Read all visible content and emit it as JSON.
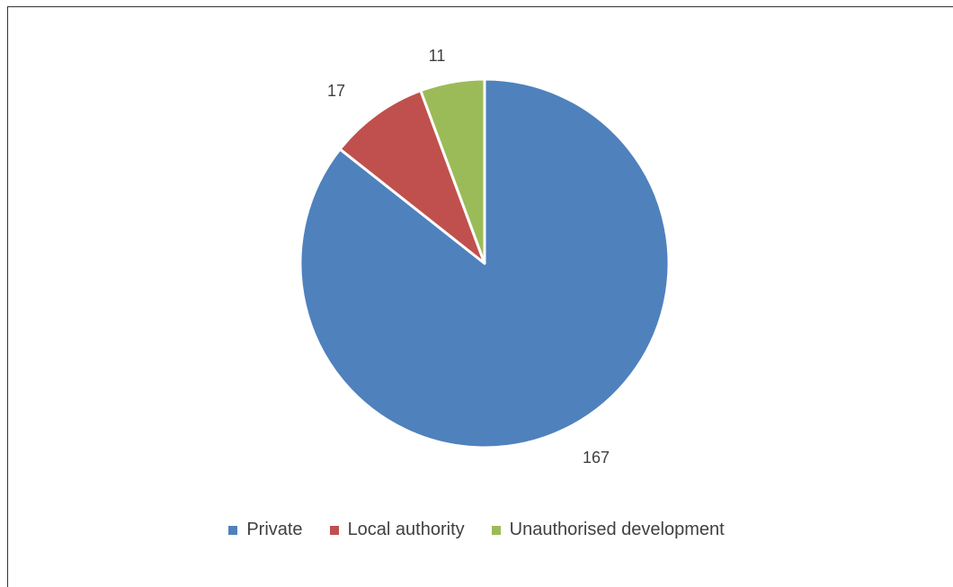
{
  "chart_data": {
    "type": "pie",
    "title": "",
    "start_angle_deg": 0,
    "direction": "clockwise",
    "legend_position": "bottom",
    "slices": [
      {
        "name": "Private",
        "value": 167,
        "label": "167",
        "color": "#4f81bd"
      },
      {
        "name": "Local authority",
        "value": 17,
        "label": "17",
        "color": "#c0504d"
      },
      {
        "name": "Unauthorised development",
        "value": 11,
        "label": "11",
        "color": "#9bbb59"
      }
    ]
  }
}
